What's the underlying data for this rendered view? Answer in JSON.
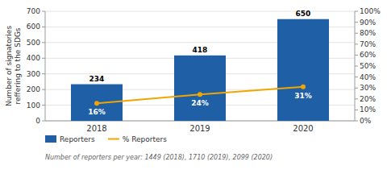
{
  "chart_data": {
    "type": "bar",
    "categories": [
      "2018",
      "2019",
      "2020"
    ],
    "series": [
      {
        "name": "Reporters",
        "type": "bar",
        "color": "#1f5fa6",
        "values": [
          234,
          418,
          650
        ]
      },
      {
        "name": "% Reporters",
        "type": "line",
        "color": "#f0a500",
        "axis": "y2",
        "marker": "circle",
        "values": [
          16,
          24,
          31
        ],
        "value_labels": [
          "16%",
          "24%",
          "31%"
        ]
      }
    ],
    "ylabel": "Number of signatories\nreffering to the SDGs",
    "ylim": [
      0,
      700
    ],
    "yticks": [
      0,
      100,
      200,
      300,
      400,
      500,
      600,
      700
    ],
    "y2lim": [
      0,
      100
    ],
    "y2ticks": [
      {
        "value": 0,
        "label": "0%"
      },
      {
        "value": 10,
        "label": "10%"
      },
      {
        "value": 20,
        "label": "20%"
      },
      {
        "value": 30,
        "label": "30%"
      },
      {
        "value": 40,
        "label": "40%"
      },
      {
        "value": 50,
        "label": "50%"
      },
      {
        "value": 60,
        "label": "60%"
      },
      {
        "value": 70,
        "label": "70%"
      },
      {
        "value": 80,
        "label": "80%"
      },
      {
        "value": 90,
        "label": "90%"
      },
      {
        "value": 100,
        "label": "100%"
      }
    ],
    "grid": true,
    "data_labels": true,
    "legend": "bottom left",
    "annotations": [
      "Number of reporters per year: 1449 (2018), 1710 (2019), 2099 (2020)"
    ]
  }
}
